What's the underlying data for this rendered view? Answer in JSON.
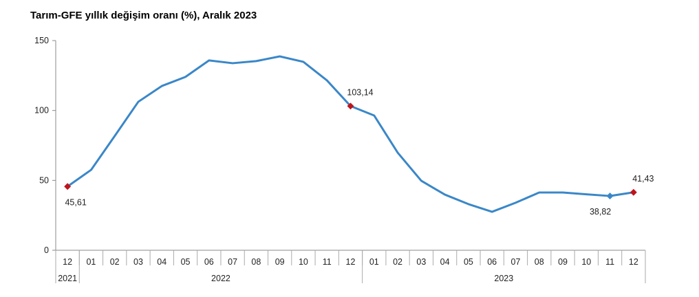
{
  "chart_data": {
    "type": "line",
    "title": "Tarım-GFE yıllık değişim oranı (%), Aralık 2023",
    "xlabel": "",
    "ylabel": "",
    "ylim": [
      0,
      150
    ],
    "yticks": [
      0,
      50,
      100,
      150
    ],
    "categories": [
      "12",
      "01",
      "02",
      "03",
      "04",
      "05",
      "06",
      "07",
      "08",
      "09",
      "10",
      "11",
      "12",
      "01",
      "02",
      "03",
      "04",
      "05",
      "06",
      "07",
      "08",
      "09",
      "10",
      "11",
      "12"
    ],
    "year_groups": [
      {
        "label": "2021",
        "count": 1
      },
      {
        "label": "2022",
        "count": 12
      },
      {
        "label": "2023",
        "count": 12
      }
    ],
    "series": [
      {
        "name": "Tarım-GFE",
        "color": "#3a87c8",
        "values": [
          45.61,
          57.5,
          81.7,
          106.2,
          117.5,
          124.0,
          135.8,
          133.8,
          135.3,
          138.7,
          134.8,
          121.5,
          103.14,
          96.4,
          69.8,
          49.7,
          39.8,
          33.0,
          27.5,
          34.0,
          41.3,
          41.3,
          40.0,
          38.82,
          41.43
        ]
      }
    ],
    "annotations": [
      {
        "index": 0,
        "label": "45,61",
        "position": "below",
        "marker_color": "#c0141c"
      },
      {
        "index": 12,
        "label": "103,14",
        "position": "above",
        "marker_color": "#c0141c"
      },
      {
        "index": 23,
        "label": "38,82",
        "position": "below",
        "marker_color": "#3a87c8"
      },
      {
        "index": 24,
        "label": "41,43",
        "position": "above",
        "marker_color": "#c0141c"
      }
    ],
    "grid": false
  }
}
